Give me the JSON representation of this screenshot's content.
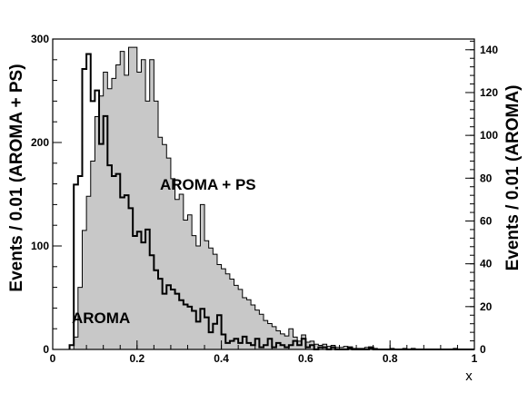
{
  "chart_data": {
    "type": "histogram",
    "title": "",
    "xlabel": "x",
    "ylabel_left": "Events / 0.01 (AROMA + PS)",
    "ylabel_right": "Events / 0.01 (AROMA)",
    "xlim": [
      0,
      1
    ],
    "ylim_left": [
      0,
      300
    ],
    "ylim_right": [
      0,
      145
    ],
    "bin_width": 0.01,
    "x_ticks": [
      0,
      0.2,
      0.4,
      0.6,
      0.8,
      1
    ],
    "x_tick_labels": [
      "0",
      "0.2",
      "0.4",
      "0.6",
      "0.8",
      "1"
    ],
    "y_left_ticks": [
      0,
      100,
      200,
      300
    ],
    "y_left_tick_labels": [
      "0",
      "100",
      "200",
      "300"
    ],
    "y_right_ticks": [
      0,
      20,
      40,
      60,
      80,
      100,
      120,
      140
    ],
    "y_right_tick_labels": [
      "0",
      "20",
      "40",
      "60",
      "80",
      "100",
      "120",
      "140"
    ],
    "grid": false,
    "series": [
      {
        "name": "AROMA + PS",
        "axis": "left",
        "style": "filled",
        "fill_color": "#c8c8c8",
        "line_color": "#000000",
        "bin_start": 0.04,
        "values": [
          0,
          12,
          60,
          115,
          148,
          182,
          225,
          245,
          268,
          252,
          262,
          275,
          288,
          265,
          292,
          292,
          268,
          280,
          240,
          280,
          240,
          205,
          198,
          185,
          165,
          145,
          150,
          125,
          130,
          110,
          100,
          140,
          105,
          98,
          92,
          82,
          78,
          73,
          68,
          62,
          58,
          50,
          48,
          43,
          38,
          34,
          28,
          25,
          22,
          18,
          15,
          13,
          20,
          12,
          8,
          14,
          7,
          8,
          5,
          4,
          5,
          3,
          4,
          2,
          2,
          3,
          1,
          1,
          1,
          1,
          2,
          1,
          1,
          0,
          0,
          0,
          1,
          0,
          0,
          1,
          0,
          1,
          0,
          0,
          0,
          0,
          0,
          0,
          0,
          0,
          0,
          1,
          0,
          0,
          0,
          0
        ]
      },
      {
        "name": "AROMA",
        "axis": "right",
        "style": "outline",
        "line_color": "#000000",
        "bin_start": 0.04,
        "values": [
          2,
          77,
          81,
          131,
          138,
          116,
          121,
          96,
          109,
          86,
          81,
          82,
          71,
          72,
          66,
          53,
          55,
          50,
          56,
          44,
          37,
          33,
          26,
          30,
          28,
          26,
          23,
          21,
          20,
          18,
          13,
          19,
          15,
          8,
          12,
          16,
          7,
          3,
          4,
          5,
          3,
          6,
          3,
          2,
          5,
          1,
          2,
          5,
          1,
          3,
          2,
          1,
          2,
          4,
          2,
          5,
          1,
          2,
          0,
          1,
          1,
          0,
          1,
          0,
          0,
          0,
          1,
          0,
          0,
          0,
          0,
          1,
          0,
          0,
          0,
          0,
          0,
          0,
          0,
          0,
          0,
          0,
          0,
          0,
          0,
          0,
          0,
          0,
          0,
          0,
          0,
          0,
          0,
          0,
          0,
          0
        ]
      }
    ],
    "annotations": [
      {
        "text": "AROMA + PS",
        "series": "AROMA + PS"
      },
      {
        "text": "AROMA",
        "series": "AROMA"
      }
    ]
  }
}
